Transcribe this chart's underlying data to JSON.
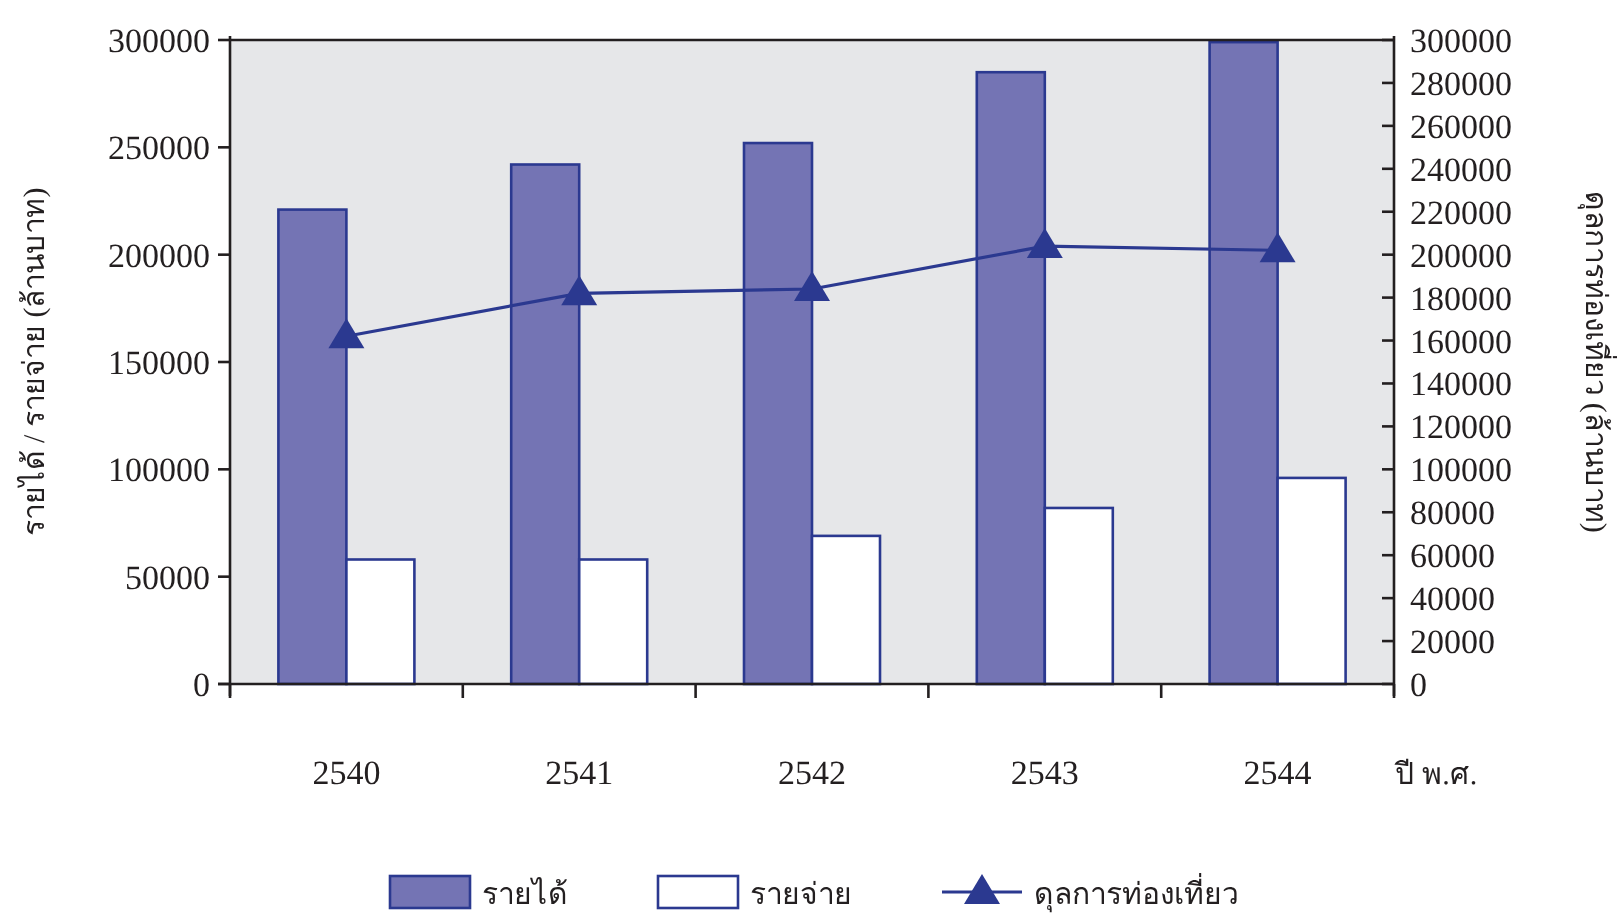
{
  "chart_data": {
    "type": "bar",
    "xlabel": "ปี พ.ศ.",
    "ylabel": "รายได้ / รายจ่าย  (ล้านบาท)",
    "y2label": "ดุลการท่องเที่ยว  (ล้านบาท)",
    "categories": [
      "2540",
      "2541",
      "2542",
      "2543",
      "2544"
    ],
    "series": [
      {
        "name": "รายได้",
        "color": "#7474b4",
        "values": [
          221000,
          242000,
          252000,
          285000,
          299000
        ]
      },
      {
        "name": "รายจ่าย",
        "color": "#ffffff",
        "values": [
          58000,
          58000,
          69000,
          82000,
          96000
        ]
      },
      {
        "name": "ดุลการท่องเที่ยว",
        "type": "line",
        "axis": "y2",
        "color": "#2b3990",
        "marker": "triangle",
        "values": [
          162000,
          182000,
          184000,
          204000,
          202000
        ]
      }
    ],
    "ylim": [
      0,
      300000
    ],
    "yticks": [
      0,
      50000,
      100000,
      150000,
      200000,
      250000,
      300000
    ],
    "y2lim": [
      0,
      300000
    ],
    "y2ticks": [
      0,
      20000,
      40000,
      60000,
      80000,
      100000,
      120000,
      140000,
      160000,
      180000,
      200000,
      220000,
      240000,
      260000,
      280000,
      300000
    ],
    "grid": false,
    "legend": "bottom"
  }
}
